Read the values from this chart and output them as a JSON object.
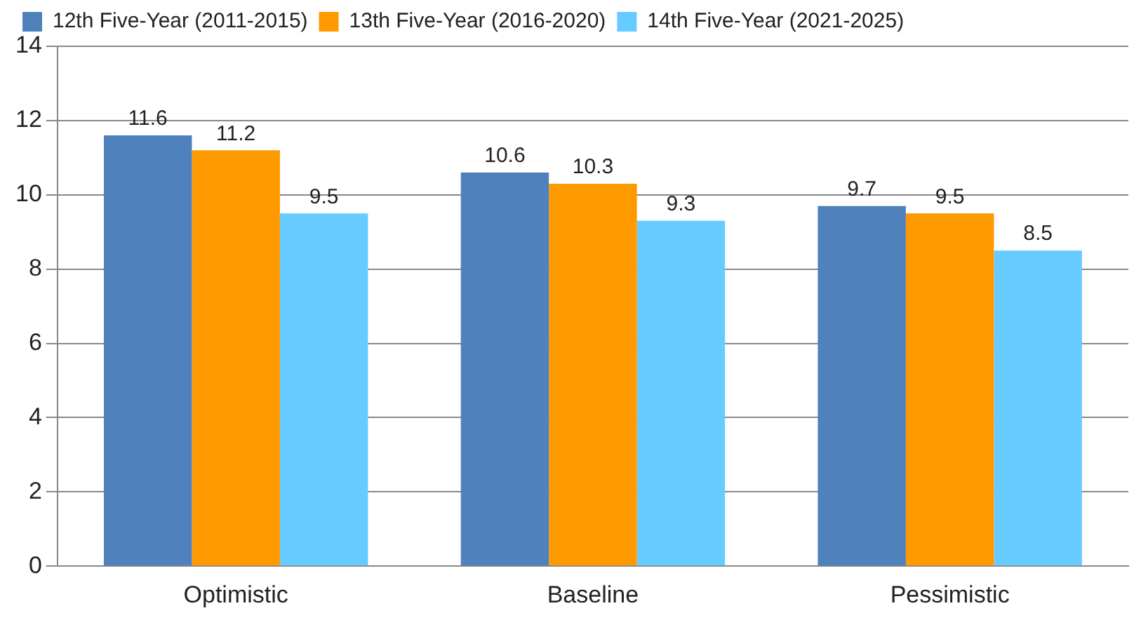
{
  "chart_data": {
    "type": "bar",
    "categories": [
      "Optimistic",
      "Baseline",
      "Pessimistic"
    ],
    "series": [
      {
        "name": "12th Five-Year (2011-2015)",
        "color": "#4f81bd",
        "values": [
          11.6,
          10.6,
          9.7
        ]
      },
      {
        "name": "13th Five-Year (2016-2020)",
        "color": "#ff9900",
        "values": [
          11.2,
          10.3,
          9.5
        ]
      },
      {
        "name": "14th Five-Year (2021-2025)",
        "color": "#66ccff",
        "values": [
          9.5,
          9.3,
          8.5
        ]
      }
    ],
    "ylim": [
      0,
      14
    ],
    "yticks": [
      0,
      2,
      4,
      6,
      8,
      10,
      12,
      14
    ],
    "grid": "y",
    "legend": "top left",
    "data_labels": true
  }
}
